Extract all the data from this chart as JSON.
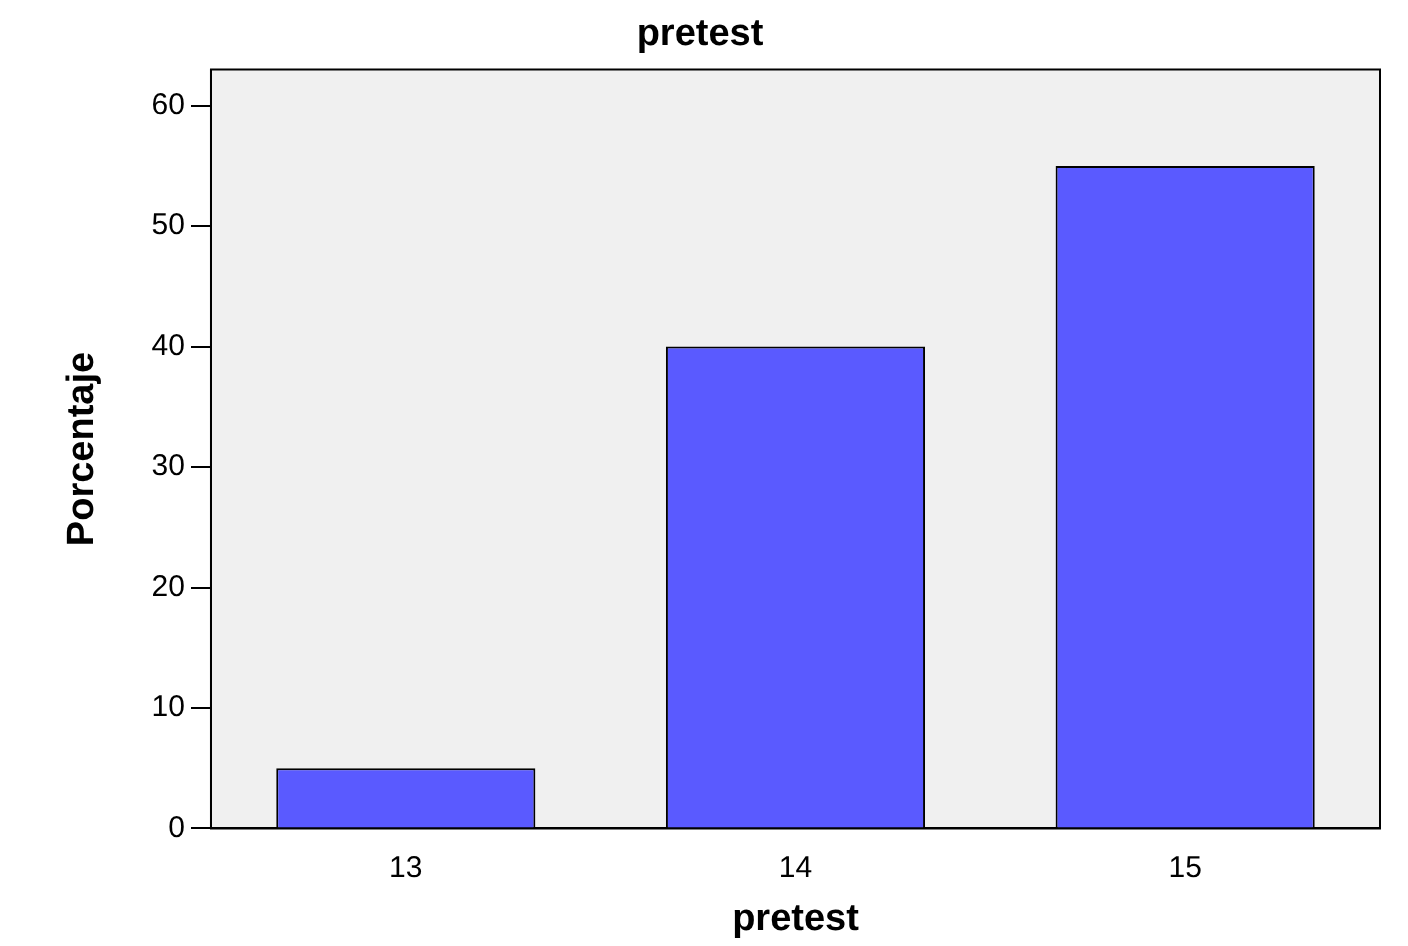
{
  "chart_data": {
    "type": "bar",
    "title": "pretest",
    "xlabel": "pretest",
    "ylabel": "Porcentaje",
    "categories": [
      "13",
      "14",
      "15"
    ],
    "values": [
      5,
      40,
      55
    ],
    "color": "#5a5aff",
    "ylim": [
      0,
      63
    ],
    "yticks": [
      0,
      10,
      20,
      30,
      40,
      50,
      60
    ],
    "grid": false,
    "legend": false
  }
}
